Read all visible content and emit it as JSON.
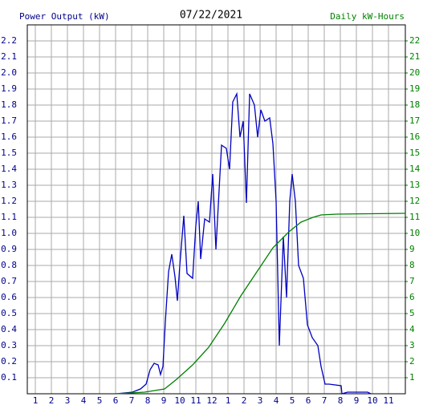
{
  "chart_data": {
    "type": "line",
    "title": "07/22/2021",
    "y_label": "Power Output (kW)",
    "y2_label": "Daily kW-Hours",
    "xlim": [
      0.5,
      24.05
    ],
    "xticks": [
      1,
      2,
      3,
      4,
      5,
      6,
      7,
      8,
      9,
      10,
      11,
      12,
      {
        "value": 13,
        "label": "1"
      },
      {
        "value": 14,
        "label": "2"
      },
      {
        "value": 15,
        "label": "3"
      },
      {
        "value": 16,
        "label": "4"
      },
      {
        "value": 17,
        "label": "5"
      },
      {
        "value": 18,
        "label": "6"
      },
      {
        "value": 19,
        "label": "7"
      },
      {
        "value": 20,
        "label": "8"
      },
      {
        "value": 21,
        "label": "9"
      },
      {
        "value": 22,
        "label": "10"
      },
      {
        "value": 23,
        "label": "11"
      }
    ],
    "ylim": [
      0,
      2.3
    ],
    "yticks": [
      0.1,
      0.2,
      0.3,
      0.4,
      0.5,
      0.6,
      0.7,
      0.8,
      0.9,
      {
        "value": 1,
        "label": "1.0"
      },
      1.1,
      1.2,
      1.3,
      1.4,
      1.5,
      1.6,
      1.7,
      1.8,
      1.9,
      {
        "value": 2,
        "label": "2.0"
      },
      2.1,
      2.2
    ],
    "y2lim": [
      0,
      23
    ],
    "y2ticks": [
      1,
      2,
      3,
      4,
      5,
      6,
      7,
      8,
      9,
      10,
      11,
      12,
      13,
      14,
      15,
      16,
      17,
      18,
      19,
      20,
      21,
      22
    ],
    "grid": true,
    "series": [
      {
        "name": "Power Output (kW)",
        "color": "#0000c0",
        "x": [
          6.05,
          7.05,
          7.55,
          7.9,
          8.15,
          8.4,
          8.65,
          8.8,
          8.95,
          9.1,
          9.3,
          9.5,
          9.7,
          9.85,
          10.0,
          10.25,
          10.45,
          10.8,
          11.0,
          11.15,
          11.3,
          11.55,
          11.85,
          12.05,
          12.25,
          12.6,
          12.9,
          13.1,
          13.3,
          13.55,
          13.75,
          13.95,
          14.15,
          14.35,
          14.65,
          14.85,
          15.05,
          15.3,
          15.6,
          15.8,
          16.0,
          16.2,
          16.45,
          16.65,
          16.85,
          17.0,
          17.2,
          17.4,
          17.7,
          17.95,
          18.25,
          18.6,
          18.8,
          19.05,
          19.3,
          20.05,
          20.1,
          20.45,
          21.7,
          21.9
        ],
        "values": [
          0,
          0.01,
          0.03,
          0.06,
          0.15,
          0.19,
          0.18,
          0.12,
          0.17,
          0.45,
          0.76,
          0.87,
          0.73,
          0.58,
          0.8,
          1.11,
          0.75,
          0.72,
          1.05,
          1.2,
          0.84,
          1.09,
          1.07,
          1.37,
          0.9,
          1.55,
          1.53,
          1.4,
          1.82,
          1.87,
          1.6,
          1.7,
          1.19,
          1.87,
          1.8,
          1.6,
          1.77,
          1.7,
          1.72,
          1.56,
          1.2,
          0.3,
          0.98,
          0.6,
          1.2,
          1.37,
          1.2,
          0.8,
          0.72,
          0.43,
          0.35,
          0.3,
          0.17,
          0.06,
          0.06,
          0.05,
          0,
          0.01,
          0.01,
          0
        ]
      },
      {
        "name": "Daily kW-Hours",
        "color": "#008000",
        "axis": "y2",
        "x": [
          6.05,
          7.8,
          9.05,
          9.8,
          10.8,
          11.8,
          12.8,
          13.8,
          14.8,
          15.8,
          16.3,
          16.8,
          17.55,
          18.3,
          18.8,
          19.8,
          24.05
        ],
        "values": [
          0,
          0.1,
          0.3,
          0.9,
          1.8,
          2.9,
          4.4,
          6.1,
          7.6,
          9.1,
          9.6,
          10.1,
          10.7,
          11.0,
          11.15,
          11.2,
          11.25
        ]
      }
    ]
  }
}
